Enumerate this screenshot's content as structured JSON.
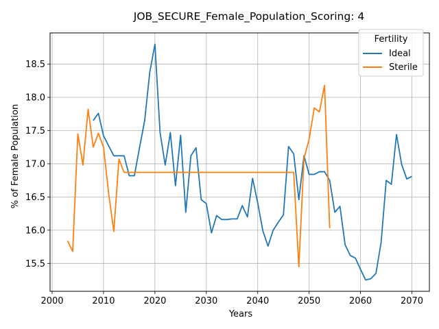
{
  "chart_data": {
    "type": "line",
    "title": "JOB_SECURE_Female_Population_Scoring: 4",
    "xlabel": "Years",
    "ylabel": "% of Female Population",
    "xlim": [
      1999.6,
      2073.4
    ],
    "ylim": [
      15.08,
      18.97
    ],
    "xticks": [
      2000,
      2010,
      2020,
      2030,
      2040,
      2050,
      2060,
      2070
    ],
    "yticks": [
      15.5,
      16.0,
      16.5,
      17.0,
      17.5,
      18.0,
      18.5
    ],
    "grid": true,
    "legend": {
      "title": "Fertility",
      "placement": "top-right"
    },
    "series": [
      {
        "name": "Ideal",
        "color": "#1f77b4",
        "x": [
          2008,
          2009,
          2010,
          2011,
          2012,
          2013,
          2014,
          2015,
          2016,
          2017,
          2018,
          2019,
          2020,
          2021,
          2022,
          2023,
          2024,
          2025,
          2026,
          2027,
          2028,
          2029,
          2030,
          2031,
          2032,
          2033,
          2034,
          2035,
          2036,
          2037,
          2038,
          2039,
          2040,
          2041,
          2042,
          2043,
          2044,
          2045,
          2046,
          2047,
          2048,
          2049,
          2050,
          2051,
          2052,
          2053,
          2054,
          2055,
          2056,
          2057,
          2058,
          2059,
          2060,
          2061,
          2062,
          2063,
          2064,
          2065,
          2066,
          2067,
          2068,
          2069,
          2070
        ],
        "y": [
          17.65,
          17.76,
          17.42,
          17.27,
          17.12,
          17.12,
          17.12,
          16.82,
          16.82,
          17.24,
          17.65,
          18.38,
          18.8,
          17.47,
          16.98,
          17.47,
          16.67,
          17.43,
          16.27,
          17.12,
          17.24,
          16.46,
          16.4,
          15.96,
          16.22,
          16.16,
          16.16,
          16.17,
          16.17,
          16.37,
          16.2,
          16.78,
          16.41,
          15.99,
          15.76,
          16.0,
          16.12,
          16.23,
          17.26,
          17.15,
          16.46,
          17.12,
          16.84,
          16.84,
          16.88,
          16.88,
          16.75,
          16.27,
          16.36,
          15.78,
          15.62,
          15.58,
          15.41,
          15.25,
          15.27,
          15.35,
          15.81,
          16.75,
          16.69,
          17.44,
          16.99,
          16.77,
          16.81
        ]
      },
      {
        "name": "Sterile",
        "color": "#ff7f0e",
        "x": [
          2003,
          2004,
          2005,
          2006,
          2007,
          2008,
          2009,
          2010,
          2011,
          2012,
          2013,
          2014,
          2015,
          2016,
          2017,
          2018,
          2019,
          2020,
          2021,
          2022,
          2023,
          2024,
          2025,
          2026,
          2027,
          2028,
          2029,
          2030,
          2031,
          2032,
          2033,
          2034,
          2035,
          2036,
          2037,
          2038,
          2039,
          2040,
          2041,
          2042,
          2043,
          2044,
          2045,
          2046,
          2047,
          2048,
          2049,
          2050,
          2051,
          2052,
          2053,
          2054
        ],
        "y": [
          15.84,
          15.68,
          17.45,
          16.98,
          17.82,
          17.25,
          17.46,
          17.25,
          16.55,
          15.98,
          17.07,
          16.87,
          16.87,
          16.87,
          16.87,
          16.87,
          16.87,
          16.87,
          16.87,
          16.87,
          16.87,
          16.87,
          16.87,
          16.87,
          16.87,
          16.87,
          16.87,
          16.87,
          16.87,
          16.87,
          16.87,
          16.87,
          16.87,
          16.87,
          16.87,
          16.87,
          16.87,
          16.87,
          16.87,
          16.87,
          16.87,
          16.87,
          16.87,
          16.87,
          16.87,
          15.45,
          17.08,
          17.37,
          17.84,
          17.78,
          18.18,
          16.03
        ]
      }
    ]
  }
}
